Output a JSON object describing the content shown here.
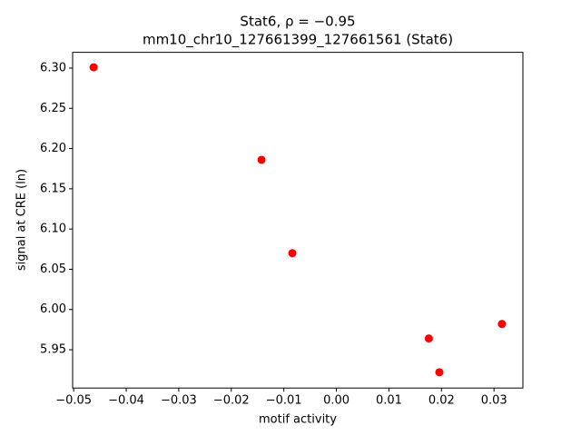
{
  "chart_data": {
    "type": "scatter",
    "title": [
      "Stat6, ρ = −0.95",
      "mm10_chr10_127661399_127661561 (Stat6)"
    ],
    "x_label": "motif activity",
    "y_label": "signal at CRE (ln)",
    "color": "#ff0000",
    "x": [
      -0.0462,
      -0.01425,
      -0.00838,
      0.0176,
      0.0196,
      0.0315
    ],
    "values": [
      6.301,
      6.186,
      6.07,
      5.964,
      5.922,
      5.982
    ],
    "xlim": [
      -0.0502,
      0.0355
    ],
    "ylim": [
      5.9024,
      6.3196
    ],
    "xticks": [
      {
        "value": -0.05,
        "label": "−0.05"
      },
      {
        "value": -0.04,
        "label": "−0.04"
      },
      {
        "value": -0.03,
        "label": "−0.03"
      },
      {
        "value": -0.02,
        "label": "−0.02"
      },
      {
        "value": -0.01,
        "label": "−0.01"
      },
      {
        "value": 0,
        "label": "0.00"
      },
      0.01,
      0.02,
      0.03
    ],
    "yticks": [
      5.95,
      {
        "value": 6.0,
        "label": "6.00"
      },
      6.05,
      {
        "value": 6.1,
        "label": "6.10"
      },
      6.15,
      {
        "value": 6.2,
        "label": "6.20"
      },
      6.25,
      {
        "value": 6.3,
        "label": "6.30"
      }
    ],
    "grid": false
  }
}
